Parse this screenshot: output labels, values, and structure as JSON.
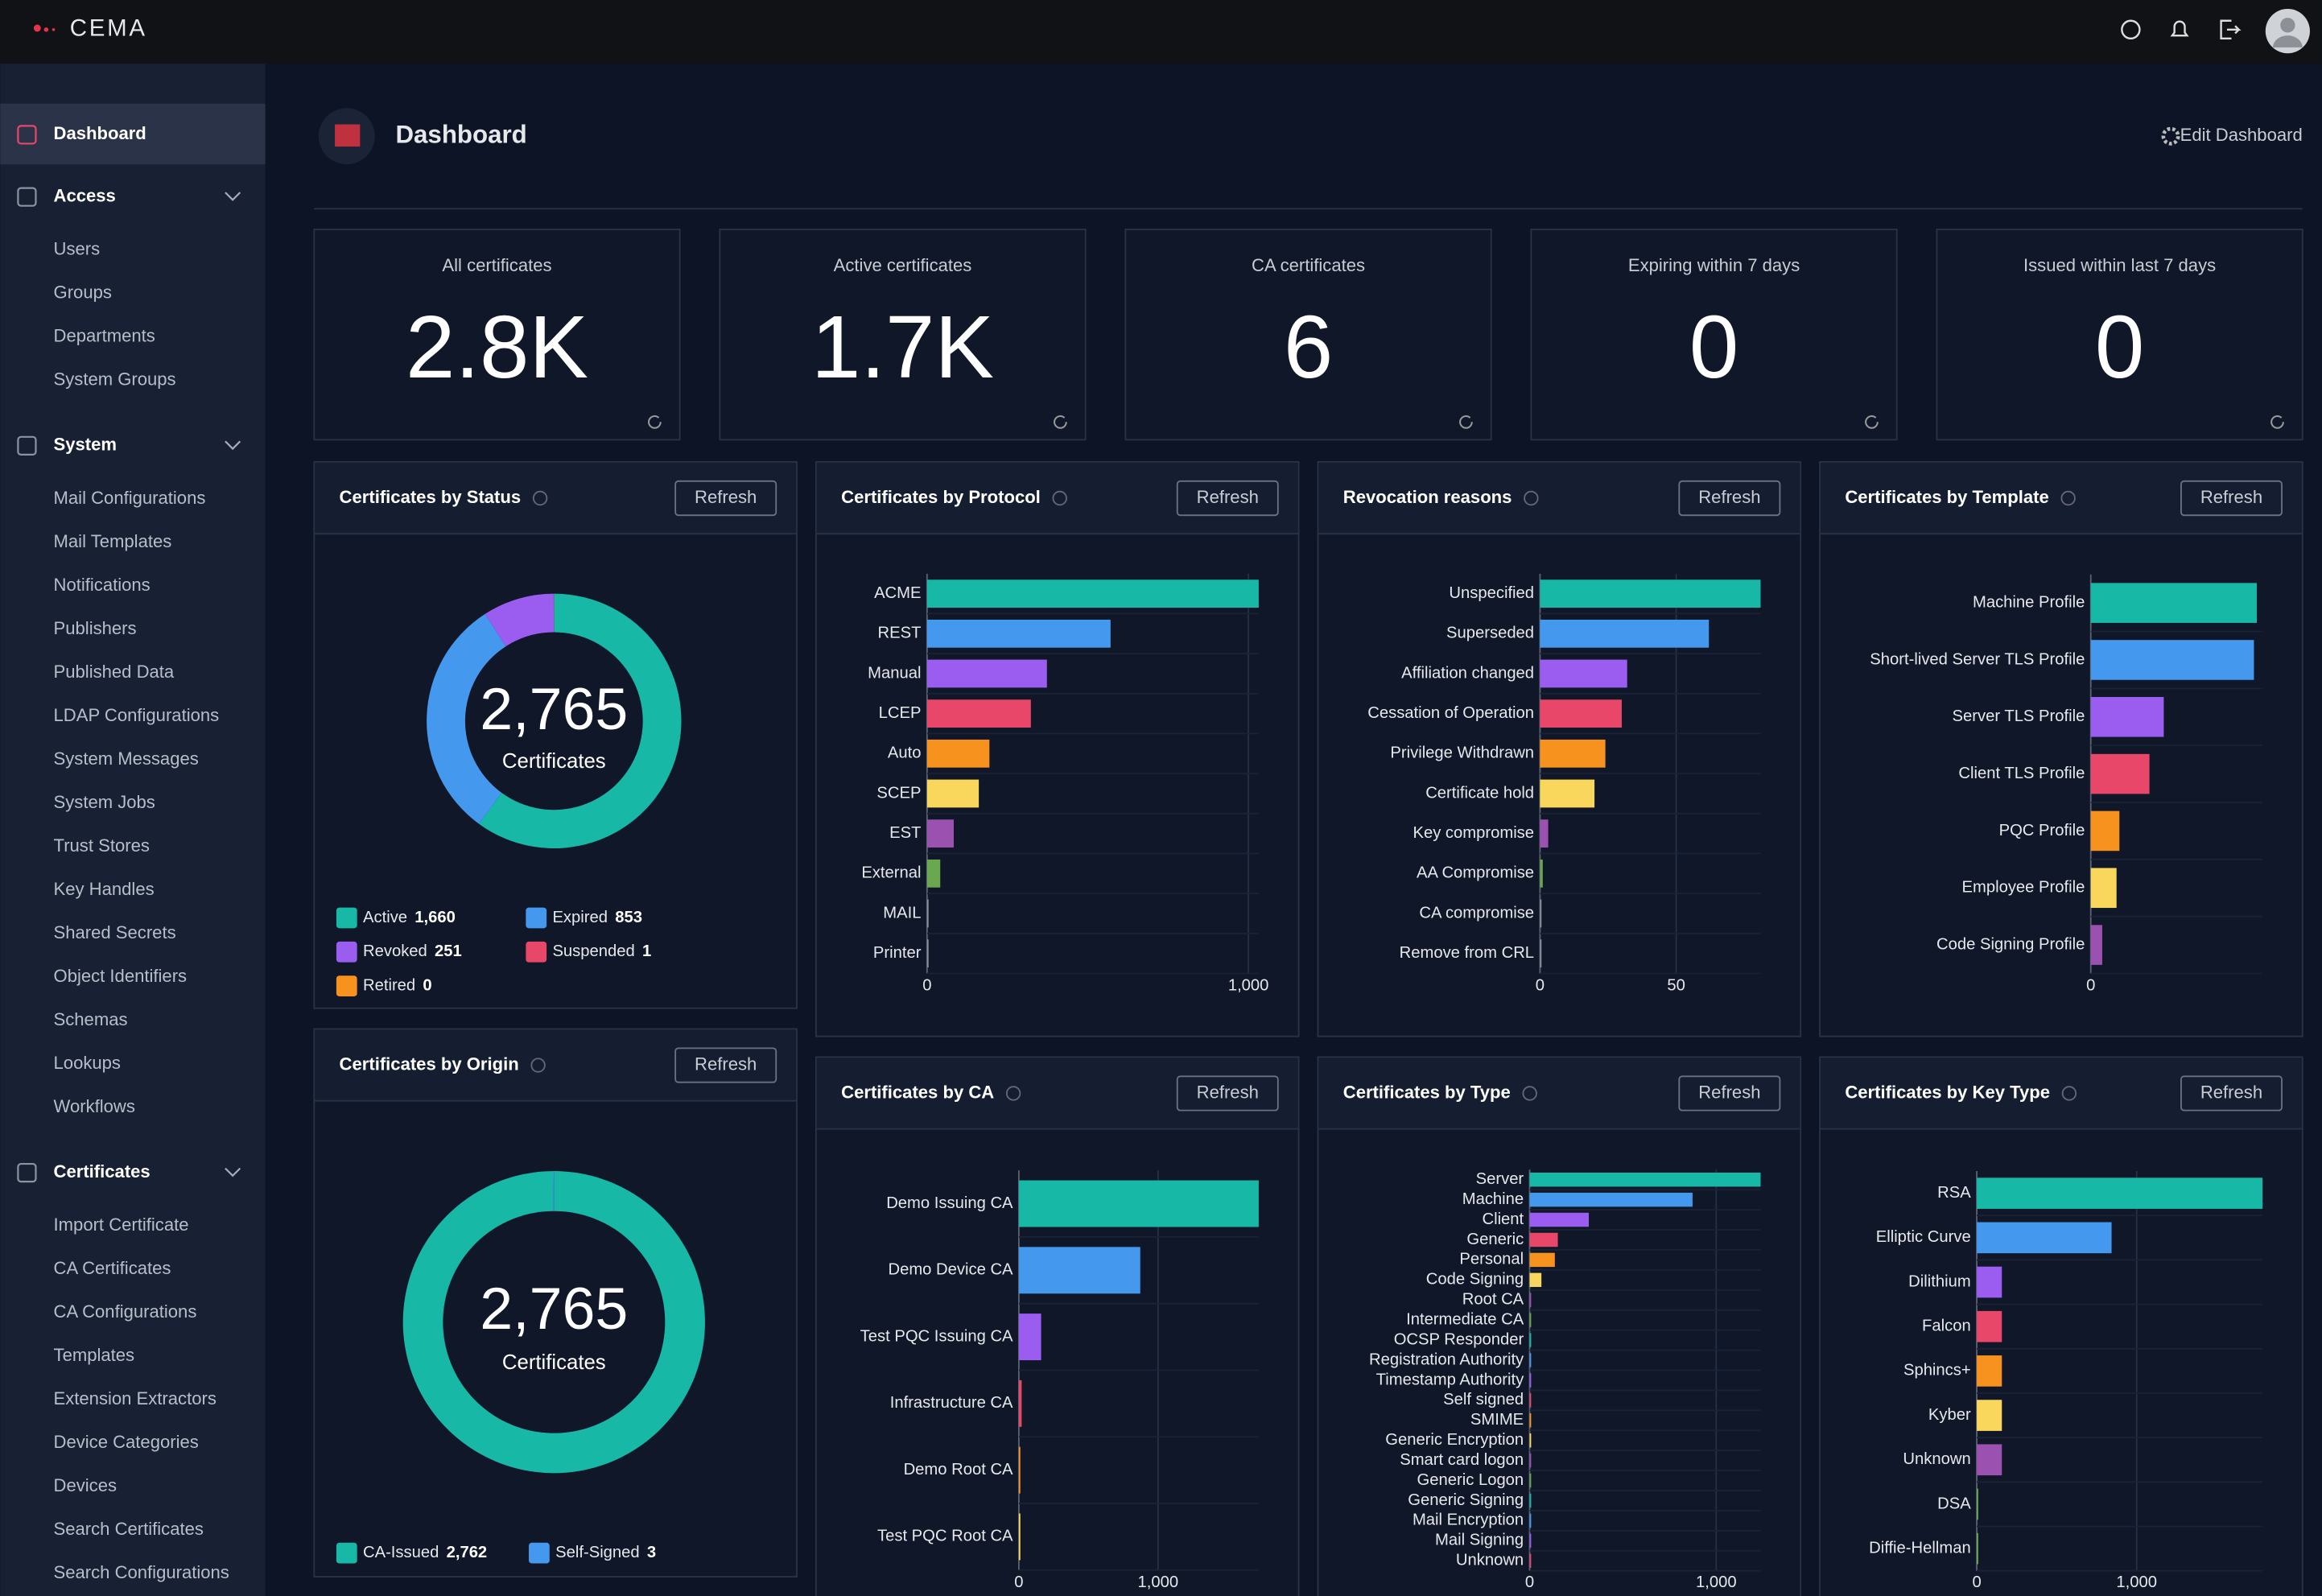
{
  "brand": "CEMA",
  "sidebar": {
    "items": [
      {
        "label": "Dashboard"
      },
      {
        "label": "Access",
        "children": [
          "Users",
          "Groups",
          "Departments",
          "System Groups"
        ]
      },
      {
        "label": "System",
        "children": [
          "Mail Configurations",
          "Mail Templates",
          "Notifications",
          "Publishers",
          "Published Data",
          "LDAP Configurations",
          "System Messages",
          "System Jobs",
          "Trust Stores",
          "Key Handles",
          "Shared Secrets",
          "Object Identifiers",
          "Schemas",
          "Lookups",
          "Workflows"
        ]
      },
      {
        "label": "Certificates",
        "children": [
          "Import Certificate",
          "CA Certificates",
          "CA Configurations",
          "Templates",
          "Extension Extractors",
          "Device Categories",
          "Devices",
          "Search Certificates",
          "Search Configurations"
        ]
      }
    ]
  },
  "page_title": "Dashboard",
  "edit_label": "Edit Dashboard",
  "refresh_label": "Refresh",
  "stats": [
    {
      "label": "All certificates",
      "value": "2.8K"
    },
    {
      "label": "Active certificates",
      "value": "1.7K"
    },
    {
      "label": "CA certificates",
      "value": "6"
    },
    {
      "label": "Expiring within 7 days",
      "value": "0"
    },
    {
      "label": "Issued within last 7 days",
      "value": "0"
    }
  ],
  "chart_data": [
    {
      "type": "donut",
      "title": "Certificates by Status",
      "total_label": "2,765",
      "center_label": "Certificates",
      "categories": [
        "Active",
        "Expired",
        "Revoked",
        "Suspended",
        "Retired"
      ],
      "values": [
        1660,
        853,
        251,
        1,
        0
      ],
      "value_labels": [
        "1,660",
        "853",
        "251",
        "1",
        "0"
      ],
      "colors": [
        "#17b8a6",
        "#4499ee",
        "#9b5cf0",
        "#e8476a",
        "#f7921e"
      ]
    },
    {
      "type": "bar",
      "orientation": "horizontal",
      "title": "Certificates by Protocol",
      "categories": [
        "ACME",
        "REST",
        "Manual",
        "LCEP",
        "Auto",
        "SCEP",
        "EST",
        "External",
        "MAIL",
        "Printer"
      ],
      "values": [
        1032,
        571,
        373,
        323,
        194,
        161,
        83,
        41,
        1,
        1
      ],
      "xlim": [
        0,
        1032
      ],
      "xticks": [
        0,
        {
          "value": 1000,
          "label": "1,000"
        }
      ],
      "colors": [
        "#17b8a6",
        "#4499ee",
        "#9b5cf0",
        "#e8476a",
        "#f7921e",
        "#f9d65c",
        "#9b51b0",
        "#6aa84f",
        "#8a8f99",
        "#8a8f99"
      ]
    },
    {
      "type": "bar",
      "orientation": "horizontal",
      "title": "Revocation reasons",
      "categories": [
        "Unspecified",
        "Superseded",
        "Affiliation changed",
        "Cessation of Operation",
        "Privilege Withdrawn",
        "Certificate hold",
        "Key compromise",
        "AA Compromise",
        "CA compromise",
        "Remove from CRL"
      ],
      "values": [
        81,
        62,
        32,
        30,
        24,
        20,
        3,
        1,
        0,
        0
      ],
      "xlim": [
        0,
        81
      ],
      "xticks": [
        0,
        50
      ],
      "colors": [
        "#17b8a6",
        "#4499ee",
        "#9b5cf0",
        "#e8476a",
        "#f7921e",
        "#f9d65c",
        "#9b51b0",
        "#6aa84f",
        "#8a8f99",
        "#8a8f99"
      ]
    },
    {
      "type": "bar",
      "orientation": "horizontal",
      "title": "Certificates by Template",
      "categories": [
        "Machine Profile",
        "Short-lived Server TLS Profile",
        "Server TLS Profile",
        "Client TLS Profile",
        "PQC Profile",
        "Employee Profile",
        "Code Signing Profile"
      ],
      "values": [
        116,
        114,
        51,
        41,
        20,
        18,
        8
      ],
      "xlim": [
        0,
        120
      ],
      "xticks": [
        0
      ],
      "colors": [
        "#17b8a6",
        "#4499ee",
        "#9b5cf0",
        "#e8476a",
        "#f7921e",
        "#f9d65c",
        "#9b51b0"
      ]
    },
    {
      "type": "donut",
      "title": "Certificates by Origin",
      "total_label": "2,765",
      "center_label": "Certificates",
      "categories": [
        "CA-Issued",
        "Self-Signed"
      ],
      "values": [
        2762,
        3
      ],
      "value_labels": [
        "2,762",
        "3"
      ],
      "colors": [
        "#17b8a6",
        "#4499ee"
      ]
    },
    {
      "type": "bar",
      "orientation": "horizontal",
      "title": "Certificates by CA",
      "categories": [
        "Demo Issuing CA",
        "Demo Device CA",
        "Test PQC Issuing CA",
        "Infrastructure CA",
        "Demo Root CA",
        "Test PQC Root CA"
      ],
      "values": [
        1723,
        872,
        160,
        20,
        10,
        10
      ],
      "xlim": [
        0,
        1723
      ],
      "xticks": [
        0,
        {
          "value": 1000,
          "label": "1,000"
        }
      ],
      "colors": [
        "#17b8a6",
        "#4499ee",
        "#9b5cf0",
        "#e8476a",
        "#f7921e",
        "#f9d65c"
      ]
    },
    {
      "type": "bar",
      "orientation": "horizontal",
      "title": "Certificates by Type",
      "categories": [
        "Server",
        "Machine",
        "Client",
        "Generic",
        "Personal",
        "Code Signing",
        "Root CA",
        "Intermediate CA",
        "OCSP Responder",
        "Registration Authority",
        "Timestamp Authority",
        "Self signed",
        "SMIME",
        "Generic Encryption",
        "Smart card logon",
        "Generic Logon",
        "Generic Signing",
        "Mail Encryption",
        "Mail Signing",
        "Unknown"
      ],
      "values": [
        1238,
        873,
        317,
        151,
        135,
        63,
        5,
        4,
        3,
        3,
        3,
        3,
        2,
        2,
        2,
        2,
        2,
        2,
        2,
        1
      ],
      "xlim": [
        0,
        1238
      ],
      "xticks": [
        0,
        {
          "value": 1000,
          "label": "1,000"
        }
      ],
      "colors": [
        "#17b8a6",
        "#4499ee",
        "#9b5cf0",
        "#e8476a",
        "#f7921e",
        "#f9d65c",
        "#9b51b0",
        "#6aa84f"
      ]
    },
    {
      "type": "bar",
      "orientation": "horizontal",
      "title": "Certificates by Key Type",
      "categories": [
        "RSA",
        "Elliptic Curve",
        "Dilithium",
        "Falcon",
        "Sphincs+",
        "Kyber",
        "Unknown",
        "DSA",
        "Diffie-Hellman"
      ],
      "values": [
        1787,
        843,
        157,
        157,
        157,
        157,
        157,
        9,
        0
      ],
      "xlim": [
        0,
        1787
      ],
      "xticks": [
        0,
        {
          "value": 1000,
          "label": "1,000"
        }
      ],
      "colors": [
        "#17b8a6",
        "#4499ee",
        "#9b5cf0",
        "#e8476a",
        "#f7921e",
        "#f9d65c",
        "#9b51b0",
        "#6aa84f",
        "#6aa84f"
      ]
    }
  ]
}
